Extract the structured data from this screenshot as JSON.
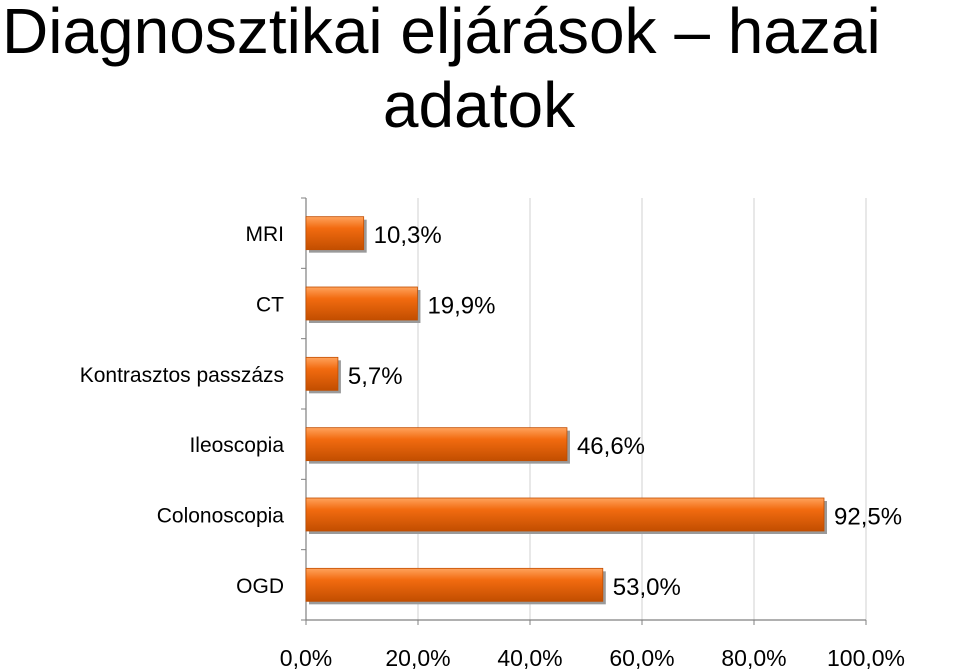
{
  "slide": {
    "title_line1": "Diagnosztikai eljárások – hazai",
    "title_line2": "adatok"
  },
  "chart_data": {
    "type": "bar",
    "orientation": "horizontal",
    "title": "",
    "xlabel": "",
    "ylabel": "",
    "categories": [
      "MRI",
      "CT",
      "Kontrasztos passzázs",
      "Ileoscopia",
      "Colonoscopia",
      "OGD"
    ],
    "values": [
      10.3,
      19.9,
      5.7,
      46.6,
      92.5,
      53.0
    ],
    "value_labels": [
      "10,3%",
      "19,9%",
      "5,7%",
      "46,6%",
      "92,5%",
      "53,0%"
    ],
    "xlim": [
      0,
      100
    ],
    "x_ticks": [
      0,
      20,
      40,
      60,
      80,
      100
    ],
    "x_tick_labels": [
      "0,0%",
      "20,0%",
      "40,0%",
      "60,0%",
      "80,0%",
      "100,0%"
    ],
    "grid": true,
    "legend": "none",
    "colors": {
      "bar_light": "#ffa35c",
      "bar_main": "#f26b10",
      "bar_dark": "#c24e00",
      "bar_shadow": "#9a9a9a",
      "grid": "#d0d0d0",
      "axis": "#808080"
    }
  }
}
